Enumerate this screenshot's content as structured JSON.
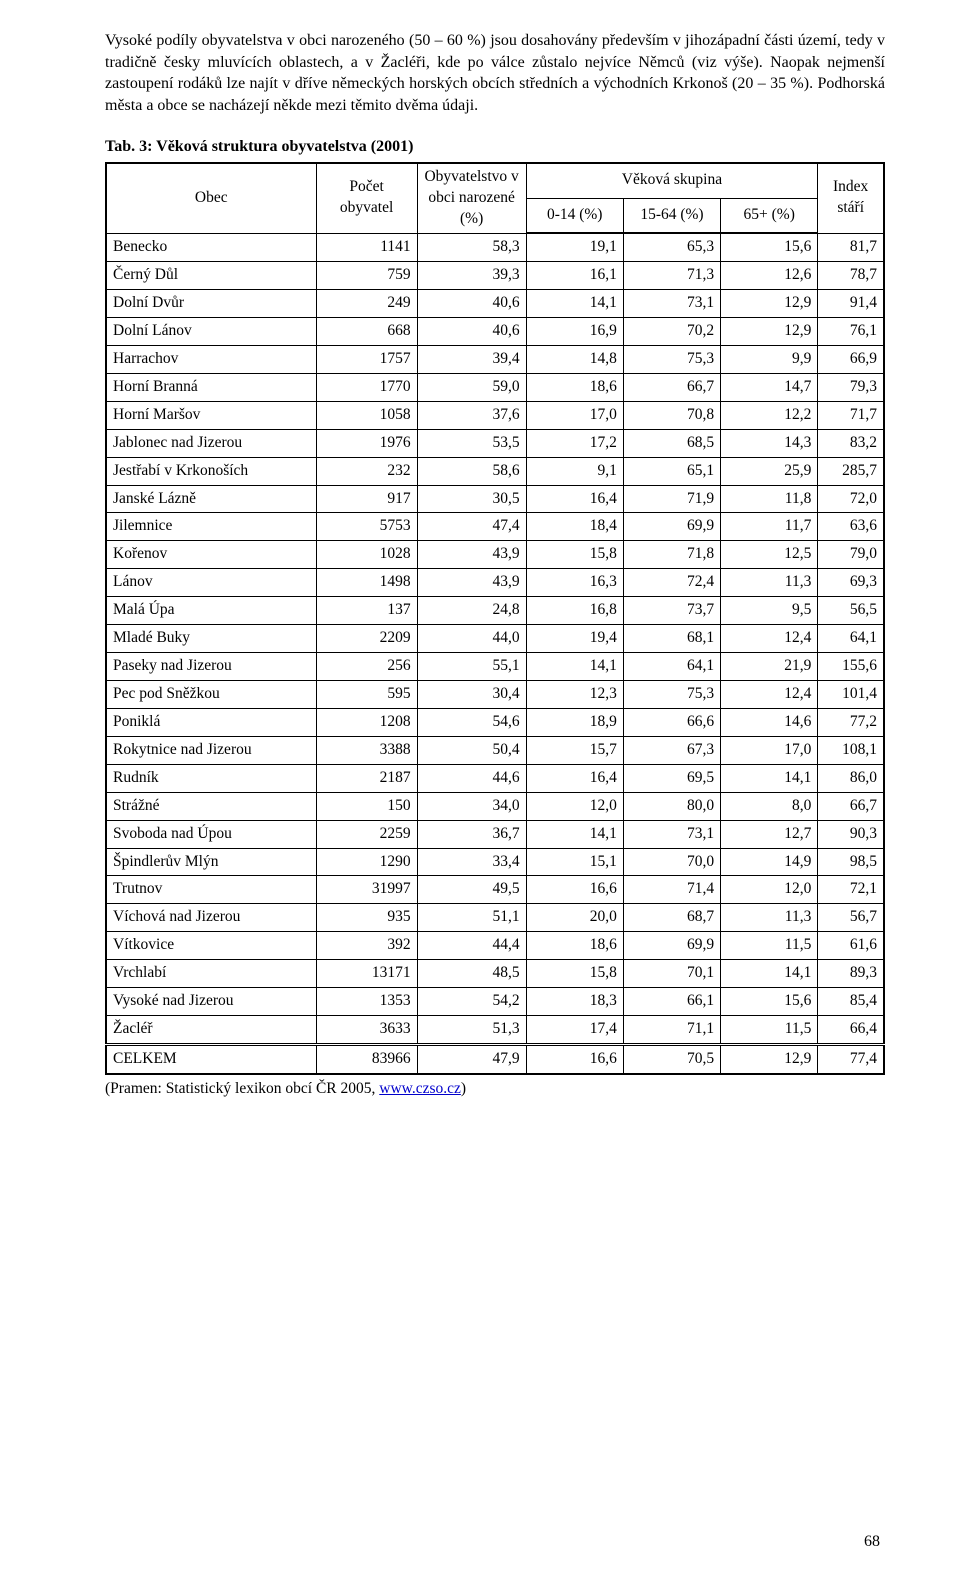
{
  "paragraph": "Vysoké podíly obyvatelstva v obci narozeného (50 – 60 %) jsou dosahovány především v jihozápadní části území, tedy v tradičně česky mluvících oblastech, a v Žacléři, kde po válce zůstalo nejvíce Němců (viz výše). Naopak nejmenší zastoupení rodáků lze najít v dříve německých horských obcích středních a východních Krkonoš (20 – 35 %). Podhorská města a obce se nacházejí někde mezi těmito dvěma údaji.",
  "table_caption": "Tab. 3: Věková struktura obyvatelstva (2001)",
  "headers": {
    "obec": "Obec",
    "pocet": "Počet obyvatel",
    "narozene": "Obyvatelstvo v obci narozené (%)",
    "skupina": "Věková skupina",
    "g0_14": "0-14 (%)",
    "g15_64": "15-64 (%)",
    "g65": "65+ (%)",
    "index": "Index stáří"
  },
  "rows": [
    {
      "obec": "Benecko",
      "pocet": "1141",
      "naroz": "58,3",
      "a": "19,1",
      "b": "65,3",
      "c": "15,6",
      "idx": "81,7"
    },
    {
      "obec": "Černý Důl",
      "pocet": "759",
      "naroz": "39,3",
      "a": "16,1",
      "b": "71,3",
      "c": "12,6",
      "idx": "78,7"
    },
    {
      "obec": "Dolní Dvůr",
      "pocet": "249",
      "naroz": "40,6",
      "a": "14,1",
      "b": "73,1",
      "c": "12,9",
      "idx": "91,4"
    },
    {
      "obec": "Dolní Lánov",
      "pocet": "668",
      "naroz": "40,6",
      "a": "16,9",
      "b": "70,2",
      "c": "12,9",
      "idx": "76,1"
    },
    {
      "obec": "Harrachov",
      "pocet": "1757",
      "naroz": "39,4",
      "a": "14,8",
      "b": "75,3",
      "c": "9,9",
      "idx": "66,9"
    },
    {
      "obec": "Horní Branná",
      "pocet": "1770",
      "naroz": "59,0",
      "a": "18,6",
      "b": "66,7",
      "c": "14,7",
      "idx": "79,3"
    },
    {
      "obec": "Horní Maršov",
      "pocet": "1058",
      "naroz": "37,6",
      "a": "17,0",
      "b": "70,8",
      "c": "12,2",
      "idx": "71,7"
    },
    {
      "obec": "Jablonec nad Jizerou",
      "pocet": "1976",
      "naroz": "53,5",
      "a": "17,2",
      "b": "68,5",
      "c": "14,3",
      "idx": "83,2"
    },
    {
      "obec": "Jestřabí v Krkonoších",
      "pocet": "232",
      "naroz": "58,6",
      "a": "9,1",
      "b": "65,1",
      "c": "25,9",
      "idx": "285,7"
    },
    {
      "obec": "Janské Lázně",
      "pocet": "917",
      "naroz": "30,5",
      "a": "16,4",
      "b": "71,9",
      "c": "11,8",
      "idx": "72,0"
    },
    {
      "obec": "Jilemnice",
      "pocet": "5753",
      "naroz": "47,4",
      "a": "18,4",
      "b": "69,9",
      "c": "11,7",
      "idx": "63,6"
    },
    {
      "obec": "Kořenov",
      "pocet": "1028",
      "naroz": "43,9",
      "a": "15,8",
      "b": "71,8",
      "c": "12,5",
      "idx": "79,0"
    },
    {
      "obec": "Lánov",
      "pocet": "1498",
      "naroz": "43,9",
      "a": "16,3",
      "b": "72,4",
      "c": "11,3",
      "idx": "69,3"
    },
    {
      "obec": "Malá Úpa",
      "pocet": "137",
      "naroz": "24,8",
      "a": "16,8",
      "b": "73,7",
      "c": "9,5",
      "idx": "56,5"
    },
    {
      "obec": "Mladé Buky",
      "pocet": "2209",
      "naroz": "44,0",
      "a": "19,4",
      "b": "68,1",
      "c": "12,4",
      "idx": "64,1"
    },
    {
      "obec": "Paseky nad Jizerou",
      "pocet": "256",
      "naroz": "55,1",
      "a": "14,1",
      "b": "64,1",
      "c": "21,9",
      "idx": "155,6"
    },
    {
      "obec": "Pec pod Sněžkou",
      "pocet": "595",
      "naroz": "30,4",
      "a": "12,3",
      "b": "75,3",
      "c": "12,4",
      "idx": "101,4"
    },
    {
      "obec": "Poniklá",
      "pocet": "1208",
      "naroz": "54,6",
      "a": "18,9",
      "b": "66,6",
      "c": "14,6",
      "idx": "77,2"
    },
    {
      "obec": "Rokytnice nad Jizerou",
      "pocet": "3388",
      "naroz": "50,4",
      "a": "15,7",
      "b": "67,3",
      "c": "17,0",
      "idx": "108,1"
    },
    {
      "obec": "Rudník",
      "pocet": "2187",
      "naroz": "44,6",
      "a": "16,4",
      "b": "69,5",
      "c": "14,1",
      "idx": "86,0"
    },
    {
      "obec": "Strážné",
      "pocet": "150",
      "naroz": "34,0",
      "a": "12,0",
      "b": "80,0",
      "c": "8,0",
      "idx": "66,7"
    },
    {
      "obec": "Svoboda nad Úpou",
      "pocet": "2259",
      "naroz": "36,7",
      "a": "14,1",
      "b": "73,1",
      "c": "12,7",
      "idx": "90,3"
    },
    {
      "obec": "Špindlerův Mlýn",
      "pocet": "1290",
      "naroz": "33,4",
      "a": "15,1",
      "b": "70,0",
      "c": "14,9",
      "idx": "98,5"
    },
    {
      "obec": "Trutnov",
      "pocet": "31997",
      "naroz": "49,5",
      "a": "16,6",
      "b": "71,4",
      "c": "12,0",
      "idx": "72,1"
    },
    {
      "obec": "Víchová nad Jizerou",
      "pocet": "935",
      "naroz": "51,1",
      "a": "20,0",
      "b": "68,7",
      "c": "11,3",
      "idx": "56,7"
    },
    {
      "obec": "Vítkovice",
      "pocet": "392",
      "naroz": "44,4",
      "a": "18,6",
      "b": "69,9",
      "c": "11,5",
      "idx": "61,6"
    },
    {
      "obec": "Vrchlabí",
      "pocet": "13171",
      "naroz": "48,5",
      "a": "15,8",
      "b": "70,1",
      "c": "14,1",
      "idx": "89,3"
    },
    {
      "obec": "Vysoké nad Jizerou",
      "pocet": "1353",
      "naroz": "54,2",
      "a": "18,3",
      "b": "66,1",
      "c": "15,6",
      "idx": "85,4"
    },
    {
      "obec": "Žacléř",
      "pocet": "3633",
      "naroz": "51,3",
      "a": "17,4",
      "b": "71,1",
      "c": "11,5",
      "idx": "66,4"
    }
  ],
  "total": {
    "obec": "CELKEM",
    "pocet": "83966",
    "naroz": "47,9",
    "a": "16,6",
    "b": "70,5",
    "c": "12,9",
    "idx": "77,4"
  },
  "source_prefix": "(Pramen: Statistický lexikon obcí ČR 2005, ",
  "source_link_text": "www.czso.cz",
  "source_suffix": ")",
  "page_number": "68"
}
